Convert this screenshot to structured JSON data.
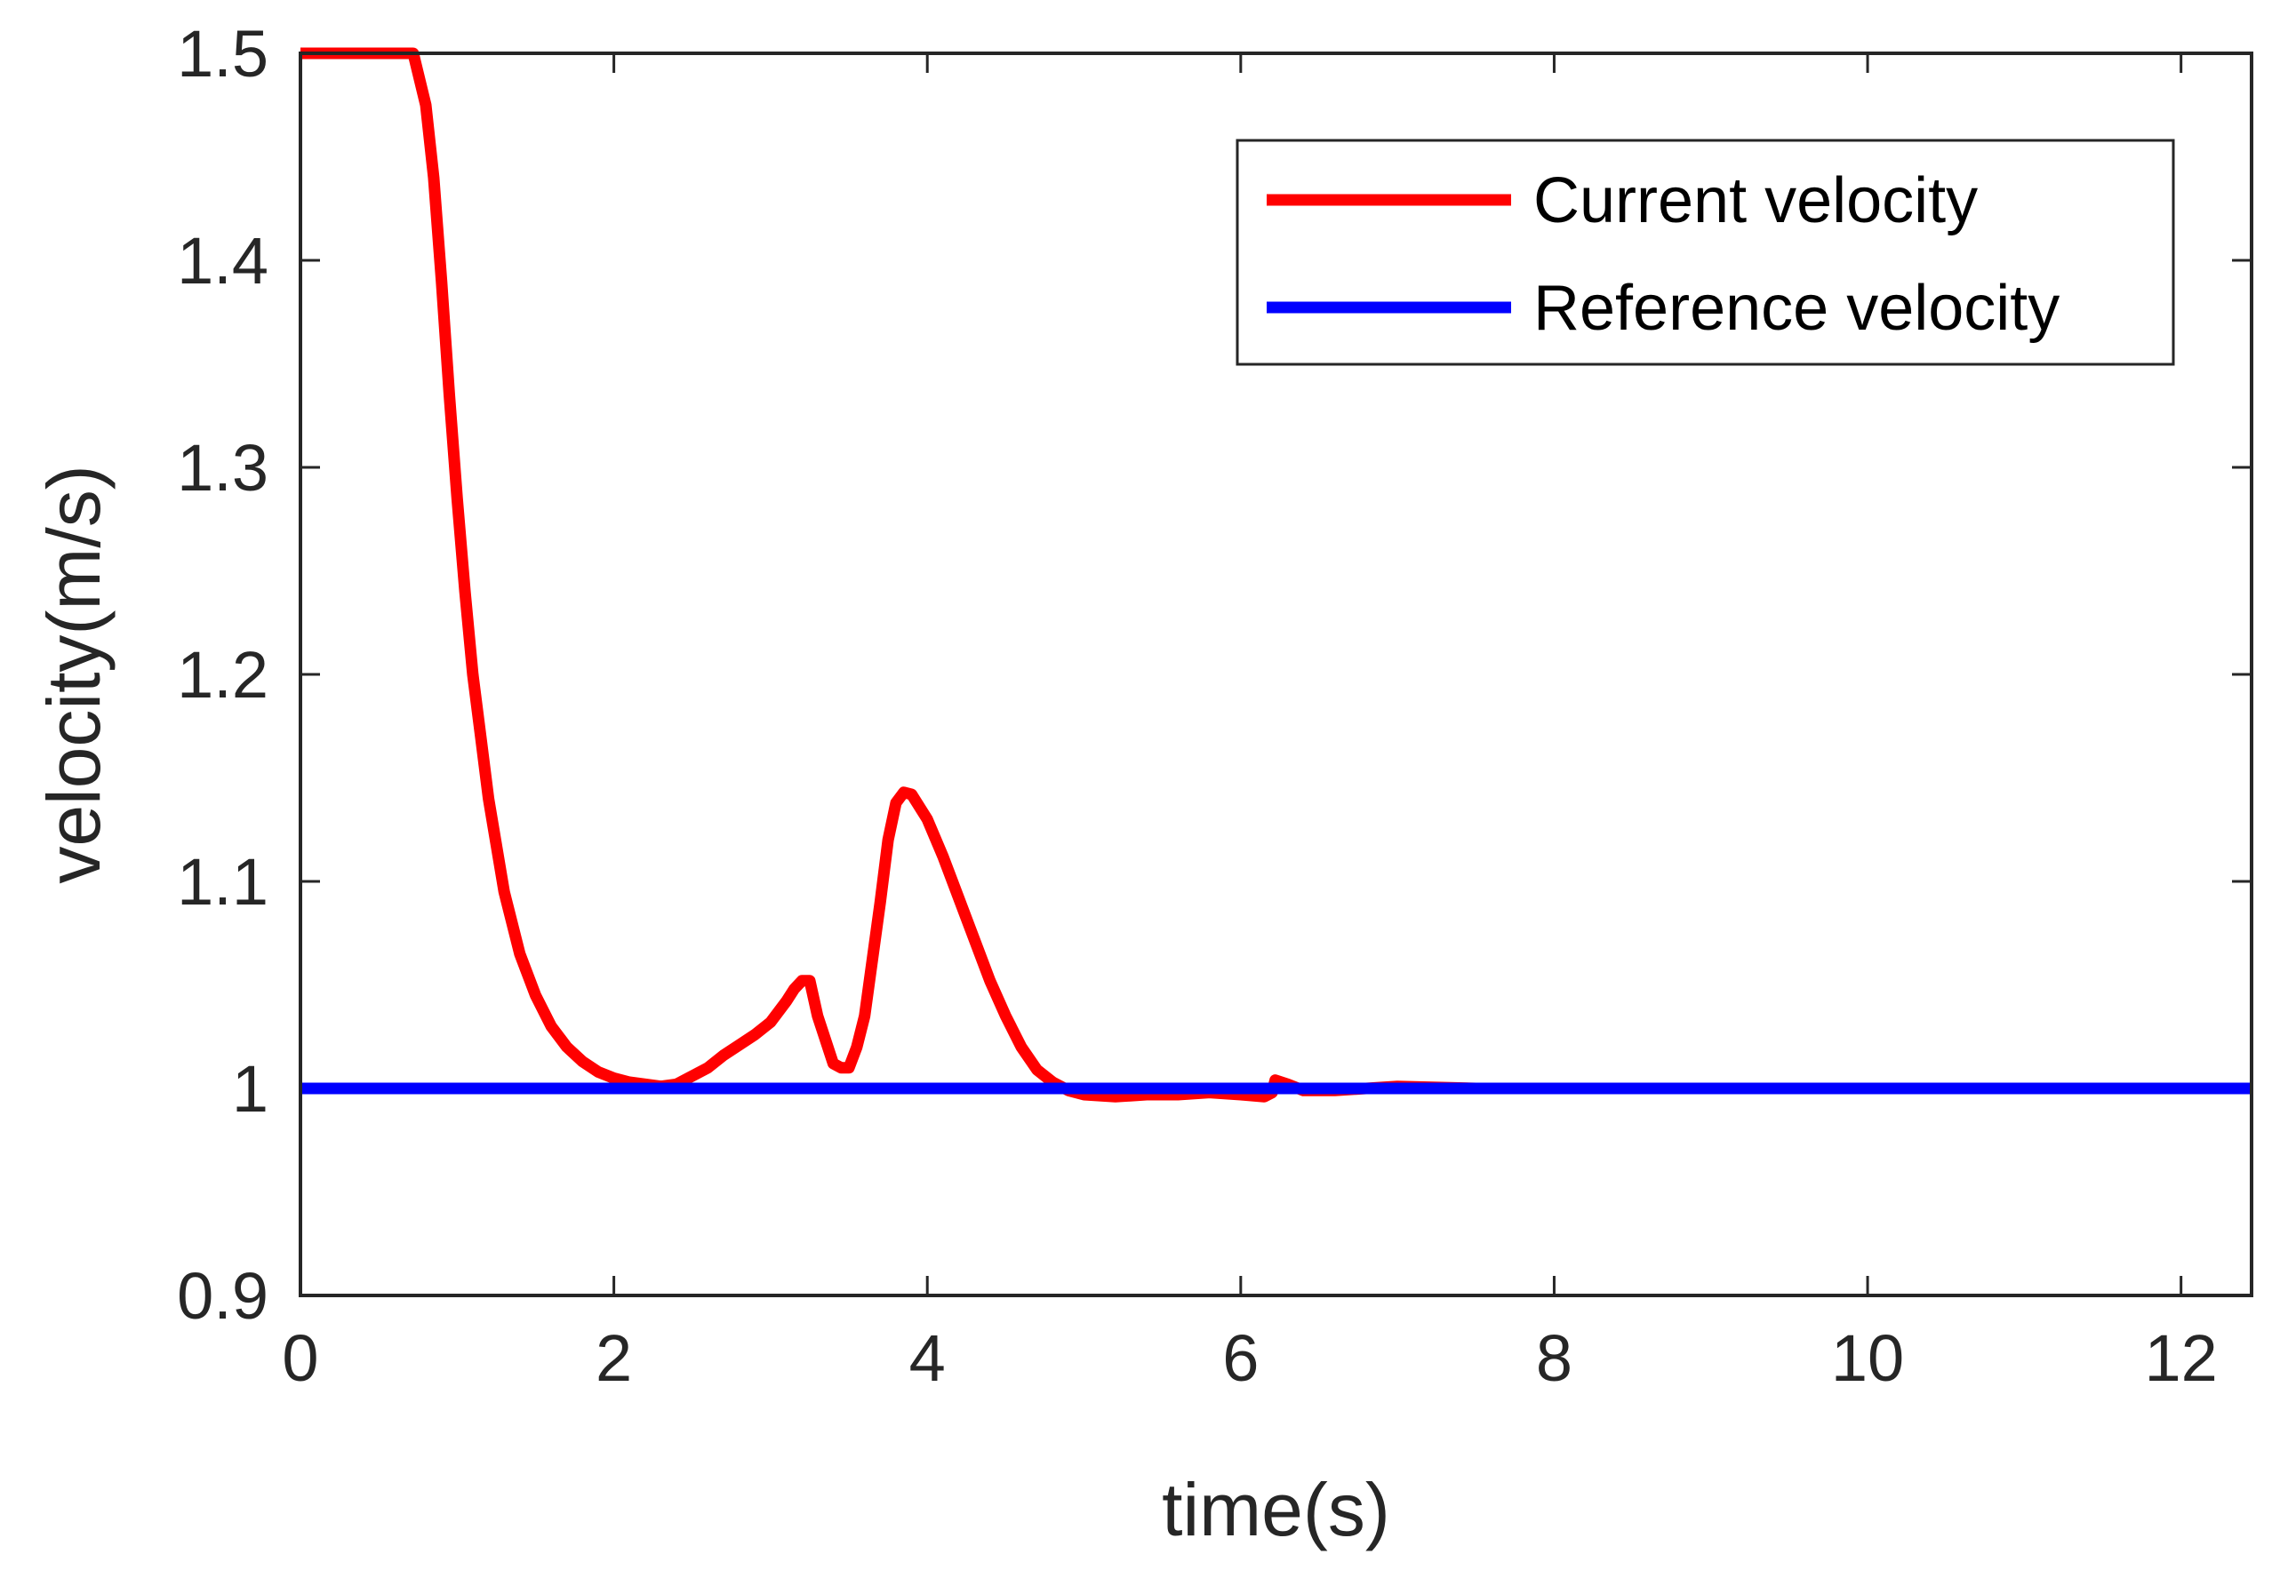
{
  "chart_data": {
    "type": "line",
    "title": "",
    "xlabel": "time(s)",
    "ylabel": "velocity(m/s)",
    "xlim": [
      0,
      12.45
    ],
    "ylim": [
      0.9,
      1.5
    ],
    "xticks": [
      0,
      2,
      4,
      6,
      8,
      10,
      12
    ],
    "xtick_labels": [
      "0",
      "2",
      "4",
      "6",
      "8",
      "10",
      "12"
    ],
    "yticks": [
      0.9,
      1.0,
      1.1,
      1.2,
      1.3,
      1.4,
      1.5
    ],
    "ytick_labels": [
      "0.9",
      "1",
      "1.1",
      "1.2",
      "1.3",
      "1.4",
      "1.5"
    ],
    "grid": false,
    "legend_position": "top-right",
    "series": [
      {
        "name": "Current velocity",
        "color": "#ff0000",
        "x": [
          0,
          0.3,
          0.72,
          0.8,
          0.85,
          0.9,
          0.95,
          1.0,
          1.05,
          1.1,
          1.15,
          1.2,
          1.3,
          1.4,
          1.5,
          1.6,
          1.7,
          1.8,
          1.9,
          2.0,
          2.1,
          2.2,
          2.3,
          2.4,
          2.5,
          2.6,
          2.7,
          2.8,
          2.9,
          3.0,
          3.1,
          3.15,
          3.2,
          3.25,
          3.3,
          3.4,
          3.45,
          3.5,
          3.55,
          3.6,
          3.7,
          3.75,
          3.8,
          3.85,
          3.9,
          4.0,
          4.1,
          4.2,
          4.3,
          4.4,
          4.5,
          4.6,
          4.7,
          4.8,
          4.9,
          5.0,
          5.2,
          5.4,
          5.6,
          5.8,
          6.0,
          6.15,
          6.2,
          6.22,
          6.3,
          6.4,
          6.6,
          6.8,
          7.0,
          7.5,
          8.0,
          9.0,
          10.0,
          11.0,
          12.45
        ],
        "y": [
          1.5,
          1.5,
          1.5,
          1.475,
          1.44,
          1.39,
          1.335,
          1.285,
          1.24,
          1.2,
          1.17,
          1.14,
          1.095,
          1.065,
          1.045,
          1.03,
          1.02,
          1.013,
          1.008,
          1.005,
          1.003,
          1.002,
          1.001,
          1.002,
          1.006,
          1.01,
          1.016,
          1.021,
          1.026,
          1.032,
          1.042,
          1.048,
          1.052,
          1.052,
          1.035,
          1.012,
          1.01,
          1.01,
          1.02,
          1.035,
          1.09,
          1.12,
          1.138,
          1.143,
          1.142,
          1.13,
          1.112,
          1.092,
          1.072,
          1.052,
          1.035,
          1.02,
          1.009,
          1.003,
          0.999,
          0.997,
          0.996,
          0.997,
          0.997,
          0.998,
          0.997,
          0.996,
          0.998,
          1.004,
          1.002,
          0.999,
          0.999,
          1.0,
          1.001,
          1.0,
          1.0,
          1.0,
          1.0,
          1.0,
          1.0
        ]
      },
      {
        "name": "Reference velocity",
        "color": "#0000ff",
        "x": [
          0,
          12.45
        ],
        "y": [
          1.0,
          1.0
        ]
      }
    ]
  }
}
